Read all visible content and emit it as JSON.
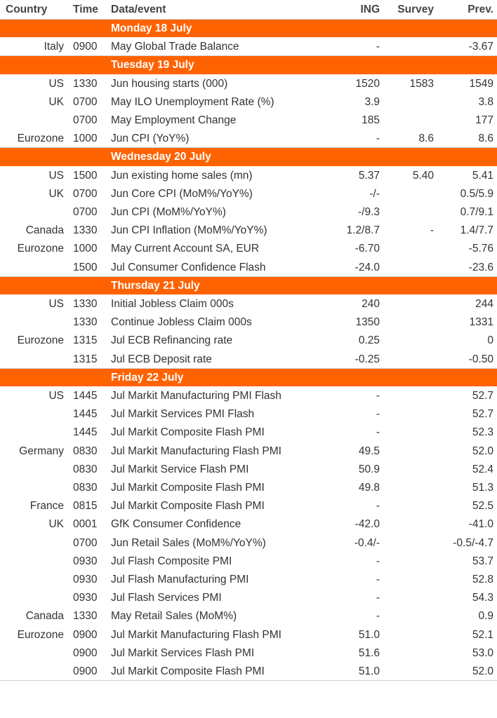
{
  "header": {
    "country": "Country",
    "time": "Time",
    "event": "Data/event",
    "ing": "ING",
    "survey": "Survey",
    "prev": "Prev."
  },
  "days": [
    {
      "title": "Monday 18 July",
      "rows": [
        {
          "country": "Italy",
          "time": "0900",
          "event": "May Global Trade Balance",
          "ing": "-",
          "prev": "-3.67"
        }
      ]
    },
    {
      "title": "Tuesday 19 July",
      "rows": [
        {
          "country": "US",
          "time": "1330",
          "event": "Jun housing starts (000)",
          "ing": "1520",
          "survey": "1583",
          "prev": "1549"
        },
        {
          "country": "UK",
          "time": "0700",
          "event": "May ILO Unemployment Rate (%)",
          "ing": "3.9",
          "prev": "3.8"
        },
        {
          "time": "0700",
          "event": "May Employment Change",
          "ing": "185",
          "prev": "177"
        },
        {
          "country": "Eurozone",
          "time": "1000",
          "event": "Jun CPI (YoY%)",
          "ing": "-",
          "survey": "8.6",
          "prev": "8.6"
        }
      ]
    },
    {
      "title": "Wednesday 20 July",
      "rows": [
        {
          "country": "US",
          "time": "1500",
          "event": "Jun existing home sales (mn)",
          "ing": "5.37",
          "survey": "5.40",
          "prev": "5.41"
        },
        {
          "country": "UK",
          "time": "0700",
          "event": "Jun Core CPI (MoM%/YoY%)",
          "ing": "-/-",
          "prev": "0.5/5.9"
        },
        {
          "time": "0700",
          "event": "Jun CPI (MoM%/YoY%)",
          "ing": "-/9.3",
          "prev": "0.7/9.1"
        },
        {
          "country": "Canada",
          "time": "1330",
          "event": "Jun CPI Inflation (MoM%/YoY%)",
          "ing": "1.2/8.7",
          "survey": "-",
          "prev": "1.4/7.7"
        },
        {
          "country": "Eurozone",
          "time": "1000",
          "event": "May Current Account SA, EUR",
          "ing": "-6.70",
          "prev": "-5.76"
        },
        {
          "time": "1500",
          "event": "Jul Consumer Confidence Flash",
          "ing": "-24.0",
          "prev": "-23.6"
        }
      ]
    },
    {
      "title": "Thursday 21 July",
      "rows": [
        {
          "country": "US",
          "time": "1330",
          "event": "Initial Jobless Claim 000s",
          "ing": "240",
          "prev": "244"
        },
        {
          "time": "1330",
          "event": "Continue Jobless Claim 000s",
          "ing": "1350",
          "prev": "1331"
        },
        {
          "country": "Eurozone",
          "time": "1315",
          "event": "Jul ECB Refinancing rate",
          "ing": "0.25",
          "prev": "0"
        },
        {
          "time": "1315",
          "event": "Jul ECB Deposit rate",
          "ing": "-0.25",
          "prev": "-0.50"
        }
      ]
    },
    {
      "title": "Friday 22 July",
      "rows": [
        {
          "country": "US",
          "time": "1445",
          "event": "Jul Markit Manufacturing PMI Flash",
          "ing": "-",
          "prev": "52.7"
        },
        {
          "time": "1445",
          "event": "Jul Markit Services PMI Flash",
          "ing": "-",
          "prev": "52.7"
        },
        {
          "time": "1445",
          "event": "Jul Markit Composite Flash PMI",
          "ing": "-",
          "prev": "52.3"
        },
        {
          "country": "Germany",
          "time": "0830",
          "event": "Jul Markit Manufacturing Flash PMI",
          "ing": "49.5",
          "prev": "52.0"
        },
        {
          "time": "0830",
          "event": "Jul Markit Service Flash PMI",
          "ing": "50.9",
          "prev": "52.4"
        },
        {
          "time": "0830",
          "event": "Jul Markit Composite Flash PMI",
          "ing": "49.8",
          "prev": "51.3"
        },
        {
          "country": "France",
          "time": "0815",
          "event": "Jul Markit Composite Flash PMI",
          "ing": "-",
          "prev": "52.5"
        },
        {
          "country": "UK",
          "time": "0001",
          "event": "GfK Consumer Confidence",
          "ing": "-42.0",
          "prev": "-41.0"
        },
        {
          "time": "0700",
          "event": "Jun Retail Sales (MoM%/YoY%)",
          "ing": "-0.4/-",
          "prev": "-0.5/-4.7"
        },
        {
          "time": "0930",
          "event": "Jul Flash Composite PMI",
          "ing": "-",
          "prev": "53.7"
        },
        {
          "time": "0930",
          "event": "Jul Flash Manufacturing PMI",
          "ing": "-",
          "prev": "52.8"
        },
        {
          "time": "0930",
          "event": "Jul Flash Services PMI",
          "ing": "-",
          "prev": "54.3"
        },
        {
          "country": "Canada",
          "time": "1330",
          "event": "May Retail Sales (MoM%)",
          "ing": "-",
          "prev": "0.9"
        },
        {
          "country": "Eurozone",
          "time": "0900",
          "event": "Jul Markit Manufacturing Flash PMI",
          "ing": "51.0",
          "prev": "52.1"
        },
        {
          "time": "0900",
          "event": "Jul Markit Services Flash PMI",
          "ing": "51.6",
          "prev": "53.0"
        },
        {
          "time": "0900",
          "event": "Jul Markit Composite Flash PMI",
          "ing": "51.0",
          "prev": "52.0"
        }
      ]
    }
  ]
}
